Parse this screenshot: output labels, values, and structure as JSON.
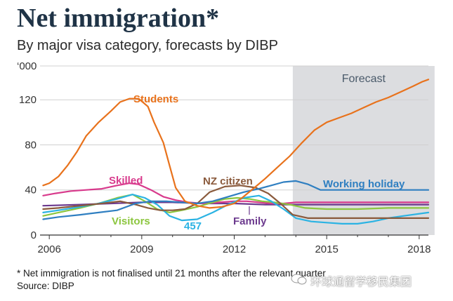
{
  "title": "Net immigration*",
  "subtitle": "By major visa category, forecasts by DIBP",
  "footnote": "* Net immigration is not finalised until 21 months after the relevant quarter",
  "source": "Source: DIBP",
  "watermark": "环球通留学移民集团",
  "chart_data": {
    "type": "line",
    "title": "Net immigration*",
    "subtitle": "By major visa category, forecasts by DIBP",
    "ylabel": "'000",
    "y_unit_label": "‘000",
    "xlabel": "",
    "xlim": [
      2005.7,
      2018.3
    ],
    "ylim": [
      0,
      150
    ],
    "yticks": [
      0,
      40,
      80,
      120
    ],
    "xticks": [
      2006,
      2009,
      2012,
      2015,
      2018
    ],
    "forecast_region": {
      "label": "Forecast",
      "start": 2013.9,
      "end": 2018.5,
      "color": "#dcdde0"
    },
    "series": [
      {
        "name": "Students",
        "color": "#e8721c",
        "x": [
          2005.8,
          2006,
          2006.3,
          2006.6,
          2006.9,
          2007.2,
          2007.6,
          2008,
          2008.3,
          2008.6,
          2008.9,
          2009.2,
          2009.4,
          2009.7,
          2009.9,
          2010.1,
          2010.4,
          2010.8,
          2011.2,
          2011.6,
          2012,
          2012.3,
          2012.7,
          2013,
          2013.4,
          2013.8,
          2014.2,
          2014.6,
          2015,
          2015.4,
          2015.8,
          2016.2,
          2016.6,
          2017,
          2017.4,
          2017.8,
          2018.1,
          2018.3
        ],
        "values": [
          44,
          46,
          52,
          62,
          74,
          88,
          100,
          110,
          118,
          121,
          121,
          114,
          100,
          82,
          62,
          42,
          30,
          26,
          24,
          25,
          28,
          34,
          43,
          50,
          60,
          70,
          82,
          93,
          100,
          104,
          108,
          113,
          118,
          122,
          127,
          132,
          136,
          138
        ]
      },
      {
        "name": "Skilled",
        "color": "#d83a8c",
        "x": [
          2005.8,
          2006.2,
          2006.7,
          2007.2,
          2007.7,
          2008.2,
          2008.6,
          2008.9,
          2009.3,
          2009.7,
          2010.1,
          2010.5,
          2011,
          2011.5,
          2012,
          2012.4,
          2012.8,
          2013.2,
          2013.6,
          2014,
          2014.5,
          2015,
          2016,
          2017,
          2018.3
        ],
        "values": [
          35,
          37,
          39,
          40,
          41,
          44,
          46,
          45,
          40,
          34,
          31,
          29,
          28,
          29,
          30,
          30,
          29,
          28,
          28,
          29,
          29,
          29,
          29,
          29,
          29
        ]
      },
      {
        "name": "NZ citizen",
        "color": "#8a5a3c",
        "x": [
          2005.8,
          2006.3,
          2007,
          2007.7,
          2008.3,
          2008.8,
          2009.2,
          2009.6,
          2010,
          2010.4,
          2010.8,
          2011.2,
          2011.7,
          2012.2,
          2012.7,
          2013.1,
          2013.5,
          2013.9,
          2014.4,
          2015,
          2016,
          2017,
          2018.3
        ],
        "values": [
          23,
          24,
          26,
          28,
          30,
          27,
          24,
          22,
          22,
          23,
          28,
          38,
          43,
          44,
          42,
          37,
          28,
          18,
          15,
          15,
          15,
          15,
          15
        ]
      },
      {
        "name": "Working holiday",
        "color": "#2f7fc1",
        "x": [
          2005.8,
          2006.3,
          2007,
          2007.6,
          2008.2,
          2008.8,
          2009.3,
          2009.8,
          2010.3,
          2010.8,
          2011.3,
          2011.8,
          2012.3,
          2012.8,
          2013.2,
          2013.6,
          2014,
          2014.4,
          2014.8,
          2015.2,
          2016,
          2017,
          2018.3
        ],
        "values": [
          14,
          16,
          18,
          20,
          22,
          28,
          30,
          30,
          29,
          28,
          30,
          34,
          38,
          41,
          44,
          47,
          48,
          45,
          40,
          40,
          40,
          40,
          40
        ]
      },
      {
        "name": "Family",
        "color": "#6c3a8e",
        "x": [
          2005.8,
          2007,
          2008,
          2009,
          2010,
          2011,
          2012,
          2013,
          2014,
          2015,
          2016,
          2017,
          2018.3
        ],
        "values": [
          26,
          27,
          28,
          29,
          29,
          28,
          28,
          27,
          27,
          27,
          27,
          27,
          27
        ]
      },
      {
        "name": "Visitors",
        "color": "#8cc63f",
        "x": [
          2005.8,
          2006.3,
          2007,
          2007.6,
          2008.2,
          2008.7,
          2009.1,
          2009.5,
          2009.9,
          2010.3,
          2010.8,
          2011.3,
          2011.7,
          2012.1,
          2012.5,
          2012.9,
          2013.3,
          2013.8,
          2014.3,
          2015,
          2016,
          2017,
          2018.3
        ],
        "values": [
          17,
          20,
          24,
          28,
          33,
          36,
          30,
          23,
          20,
          22,
          25,
          29,
          32,
          33,
          32,
          30,
          29,
          27,
          24,
          23,
          23,
          24,
          24
        ]
      },
      {
        "name": "457",
        "color": "#2bb3e3",
        "x": [
          2005.8,
          2006.3,
          2007,
          2007.6,
          2008.2,
          2008.7,
          2009.1,
          2009.5,
          2009.9,
          2010.3,
          2010.8,
          2011.3,
          2011.8,
          2012.3,
          2012.8,
          2013.2,
          2013.6,
          2014,
          2014.5,
          2015,
          2015.5,
          2016,
          2016.5,
          2017,
          2017.5,
          2018.3
        ],
        "values": [
          20,
          22,
          25,
          28,
          32,
          36,
          33,
          27,
          17,
          13,
          14,
          20,
          27,
          33,
          35,
          30,
          23,
          15,
          12,
          11,
          10,
          10,
          12,
          15,
          17,
          20
        ]
      }
    ],
    "series_labels": [
      "Students",
      "Skilled",
      "NZ citizen",
      "Working holiday",
      "Visitors",
      "457",
      "Family"
    ]
  }
}
